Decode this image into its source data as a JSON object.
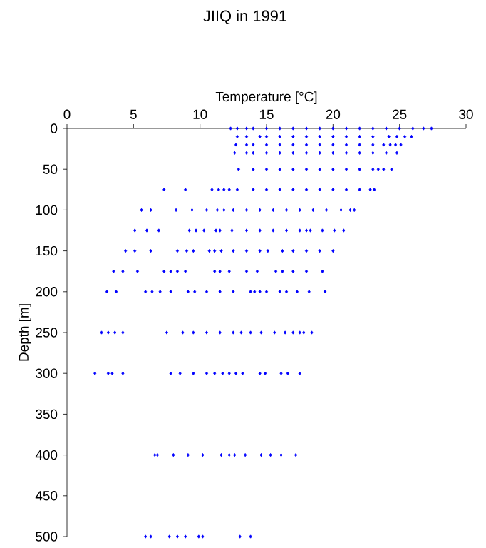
{
  "chart_data": {
    "type": "scatter",
    "title": "JIIQ in 1991",
    "xlabel": "Temperature [°C]",
    "ylabel": "Depth [m]",
    "xlim": [
      0,
      30
    ],
    "ylim": [
      500,
      0
    ],
    "xticks": [
      0,
      5,
      10,
      15,
      20,
      25,
      30
    ],
    "yticks": [
      0,
      50,
      100,
      150,
      200,
      250,
      300,
      350,
      400,
      450,
      500
    ],
    "marker": "diamond",
    "color": "#0000ff",
    "x": [
      12.3,
      12.8,
      13.5,
      14,
      15,
      16,
      17,
      18,
      19,
      20,
      21,
      22,
      23,
      24,
      25,
      26,
      26.8,
      27.4,
      12.8,
      13.5,
      14.5,
      15,
      16,
      17,
      18,
      19,
      20,
      21,
      22,
      23,
      24.2,
      24.8,
      25.4,
      25.9,
      12.7,
      13.5,
      14,
      15,
      16,
      17,
      18,
      19,
      20,
      21,
      22,
      23,
      23.8,
      24.3,
      24.7,
      25.1,
      12.6,
      13.5,
      14,
      15,
      16,
      17,
      18,
      19,
      20,
      21,
      22,
      23,
      24,
      24.8,
      12.9,
      14,
      15,
      16,
      17,
      18,
      19,
      20,
      21,
      22,
      23,
      23.4,
      23.8,
      24.4,
      7.3,
      8.9,
      10.9,
      11.4,
      11.8,
      12.2,
      12.8,
      14,
      15,
      16,
      17,
      18,
      19,
      20,
      21,
      22,
      22.8,
      23.1,
      5.6,
      6.3,
      8.2,
      9.4,
      10.5,
      11.3,
      11.8,
      12.5,
      13.5,
      14.5,
      15.5,
      16.5,
      17.5,
      18.5,
      19.5,
      20.6,
      21.3,
      21.6,
      5.1,
      6.0,
      6.9,
      9.2,
      9.7,
      10.3,
      11.2,
      11.5,
      12.4,
      13.5,
      14.5,
      15.5,
      16.5,
      17.5,
      18.0,
      18.3,
      19.2,
      20.1,
      20.8,
      4.4,
      5.1,
      6.3,
      8.3,
      9.0,
      9.5,
      10.7,
      11.1,
      11.6,
      12.5,
      13.5,
      14.5,
      15.1,
      16.2,
      17,
      18,
      19.0,
      20.0,
      3.5,
      4.2,
      5.3,
      7.3,
      7.8,
      8.3,
      8.9,
      11.1,
      11.5,
      12.2,
      13.5,
      14.3,
      15.7,
      16.2,
      17,
      18,
      19.2,
      3.0,
      3.7,
      5.9,
      6.4,
      7.0,
      7.8,
      9.1,
      9.6,
      10.5,
      11.5,
      12.5,
      13.8,
      14.1,
      14.5,
      15.0,
      16.0,
      16.5,
      17.3,
      18.2,
      19.4,
      2.6,
      3.1,
      3.6,
      4.2,
      7.5,
      8.7,
      9.5,
      10.5,
      11.5,
      12.5,
      13.1,
      13.8,
      14.6,
      15.6,
      16.4,
      17.0,
      17.5,
      17.8,
      18.4,
      2.1,
      3.1,
      3.4,
      4.2,
      7.8,
      8.5,
      9.5,
      10.5,
      11.1,
      11.7,
      12.2,
      12.7,
      13.2,
      14.5,
      14.9,
      16.1,
      16.6,
      17.5,
      6.6,
      6.8,
      8.0,
      9.1,
      10.2,
      11.6,
      12.2,
      12.6,
      13.4,
      14.6,
      15.3,
      16.1,
      17.2,
      5.9,
      6.3,
      7.7,
      8.3,
      8.9,
      9.9,
      10.2,
      13.0,
      13.8
    ],
    "values": [
      0,
      0,
      0,
      0,
      0,
      0,
      0,
      0,
      0,
      0,
      0,
      0,
      0,
      0,
      0,
      0,
      0,
      0,
      10,
      10,
      10,
      10,
      10,
      10,
      10,
      10,
      10,
      10,
      10,
      10,
      10,
      10,
      10,
      10,
      20,
      20,
      20,
      20,
      20,
      20,
      20,
      20,
      20,
      20,
      20,
      20,
      20,
      20,
      20,
      20,
      30,
      30,
      30,
      30,
      30,
      30,
      30,
      30,
      30,
      30,
      30,
      30,
      30,
      30,
      50,
      50,
      50,
      50,
      50,
      50,
      50,
      50,
      50,
      50,
      50,
      50,
      50,
      50,
      75,
      75,
      75,
      75,
      75,
      75,
      75,
      75,
      75,
      75,
      75,
      75,
      75,
      75,
      75,
      75,
      75,
      75,
      100,
      100,
      100,
      100,
      100,
      100,
      100,
      100,
      100,
      100,
      100,
      100,
      100,
      100,
      100,
      100,
      100,
      100,
      125,
      125,
      125,
      125,
      125,
      125,
      125,
      125,
      125,
      125,
      125,
      125,
      125,
      125,
      125,
      125,
      125,
      125,
      125,
      150,
      150,
      150,
      150,
      150,
      150,
      150,
      150,
      150,
      150,
      150,
      150,
      150,
      150,
      150,
      150,
      150,
      150,
      175,
      175,
      175,
      175,
      175,
      175,
      175,
      175,
      175,
      175,
      175,
      175,
      175,
      175,
      175,
      175,
      175,
      200,
      200,
      200,
      200,
      200,
      200,
      200,
      200,
      200,
      200,
      200,
      200,
      200,
      200,
      200,
      200,
      200,
      200,
      200,
      200,
      250,
      250,
      250,
      250,
      250,
      250,
      250,
      250,
      250,
      250,
      250,
      250,
      250,
      250,
      250,
      250,
      250,
      250,
      250,
      300,
      300,
      300,
      300,
      300,
      300,
      300,
      300,
      300,
      300,
      300,
      300,
      300,
      300,
      300,
      300,
      300,
      300,
      400,
      400,
      400,
      400,
      400,
      400,
      400,
      400,
      400,
      400,
      400,
      400,
      400,
      500,
      500,
      500,
      500,
      500,
      500,
      500,
      500,
      500
    ]
  }
}
